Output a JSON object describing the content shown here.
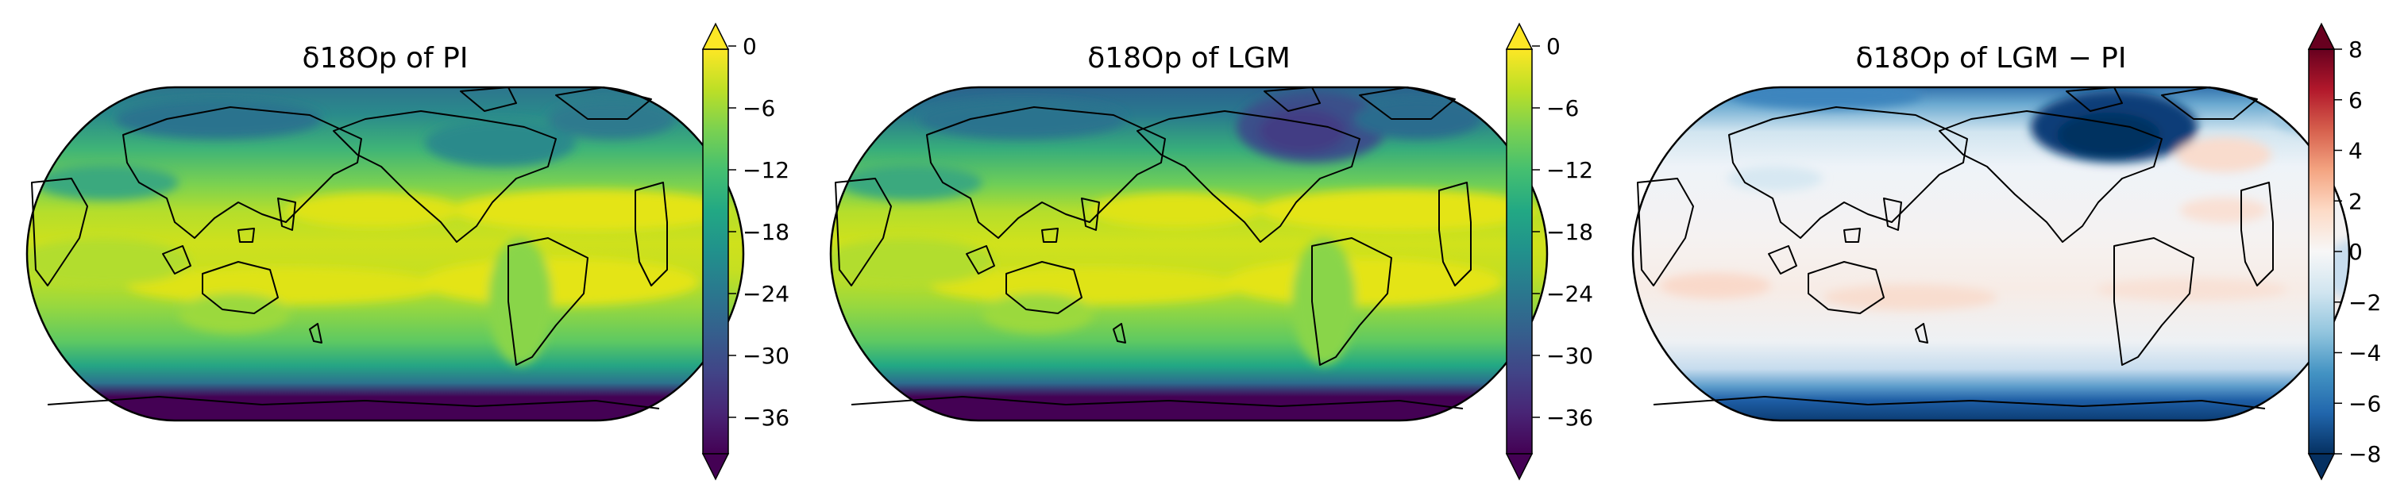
{
  "chart_data": [
    {
      "type": "heatmap",
      "title": "δ18Op of PI",
      "projection": "Robinson (central longitude 180°)",
      "colormap": "viridis",
      "colorbar": {
        "ticks": [
          "0",
          "−6",
          "−12",
          "−18",
          "−24",
          "−30",
          "−36"
        ],
        "tick_values": [
          0,
          -6,
          -12,
          -18,
          -24,
          -30,
          -36
        ],
        "range": [
          -39,
          0
        ],
        "levels": 13,
        "extend": "both"
      },
      "colors": [
        "#440154",
        "#482475",
        "#414487",
        "#355f8d",
        "#2a788e",
        "#21918c",
        "#22a884",
        "#44bf70",
        "#7ad151",
        "#bddf26",
        "#fde725"
      ],
      "pattern": "tropics about −3 to −9; mid-latitudes −9 to −15; high latitudes −18 to −24; Antarctic interior below −36"
    },
    {
      "type": "heatmap",
      "title": "δ18Op of LGM",
      "projection": "Robinson (central longitude 180°)",
      "colormap": "viridis",
      "colorbar": {
        "ticks": [
          "0",
          "−6",
          "−12",
          "−18",
          "−24",
          "−30",
          "−36"
        ],
        "tick_values": [
          0,
          -6,
          -12,
          -18,
          -24,
          -30,
          -36
        ],
        "range": [
          -39,
          0
        ],
        "levels": 13,
        "extend": "both"
      },
      "colors": [
        "#440154",
        "#482475",
        "#414487",
        "#355f8d",
        "#2a788e",
        "#21918c",
        "#22a884",
        "#44bf70",
        "#7ad151",
        "#bddf26",
        "#fde725"
      ],
      "pattern": "similar to PI with strongly depleted values (about −30) over the North American ice sheet; Antarctic interior below −36"
    },
    {
      "type": "heatmap",
      "title": "δ18Op of LGM − PI",
      "projection": "Robinson (central longitude 180°)",
      "colormap": "RdBu_r",
      "colorbar": {
        "ticks": [
          "8",
          "6",
          "4",
          "2",
          "0",
          "−2",
          "−4",
          "−6",
          "−8"
        ],
        "tick_values": [
          8,
          6,
          4,
          2,
          0,
          -2,
          -4,
          -6,
          -8
        ],
        "range": [
          -8,
          8
        ],
        "levels": 16,
        "extend": "both"
      },
      "colors": [
        "#053061",
        "#2166ac",
        "#4393c3",
        "#92c5de",
        "#d1e5f0",
        "#f7f7f7",
        "#fddbc7",
        "#f4a582",
        "#d6604d",
        "#b2182b",
        "#67001f"
      ],
      "pattern": "near zero over most of the globe; slightly positive (0 to 1) in subtropical oceans; strongly negative (below −8) over North America and near Antarctica; negative over high northern latitudes"
    }
  ]
}
